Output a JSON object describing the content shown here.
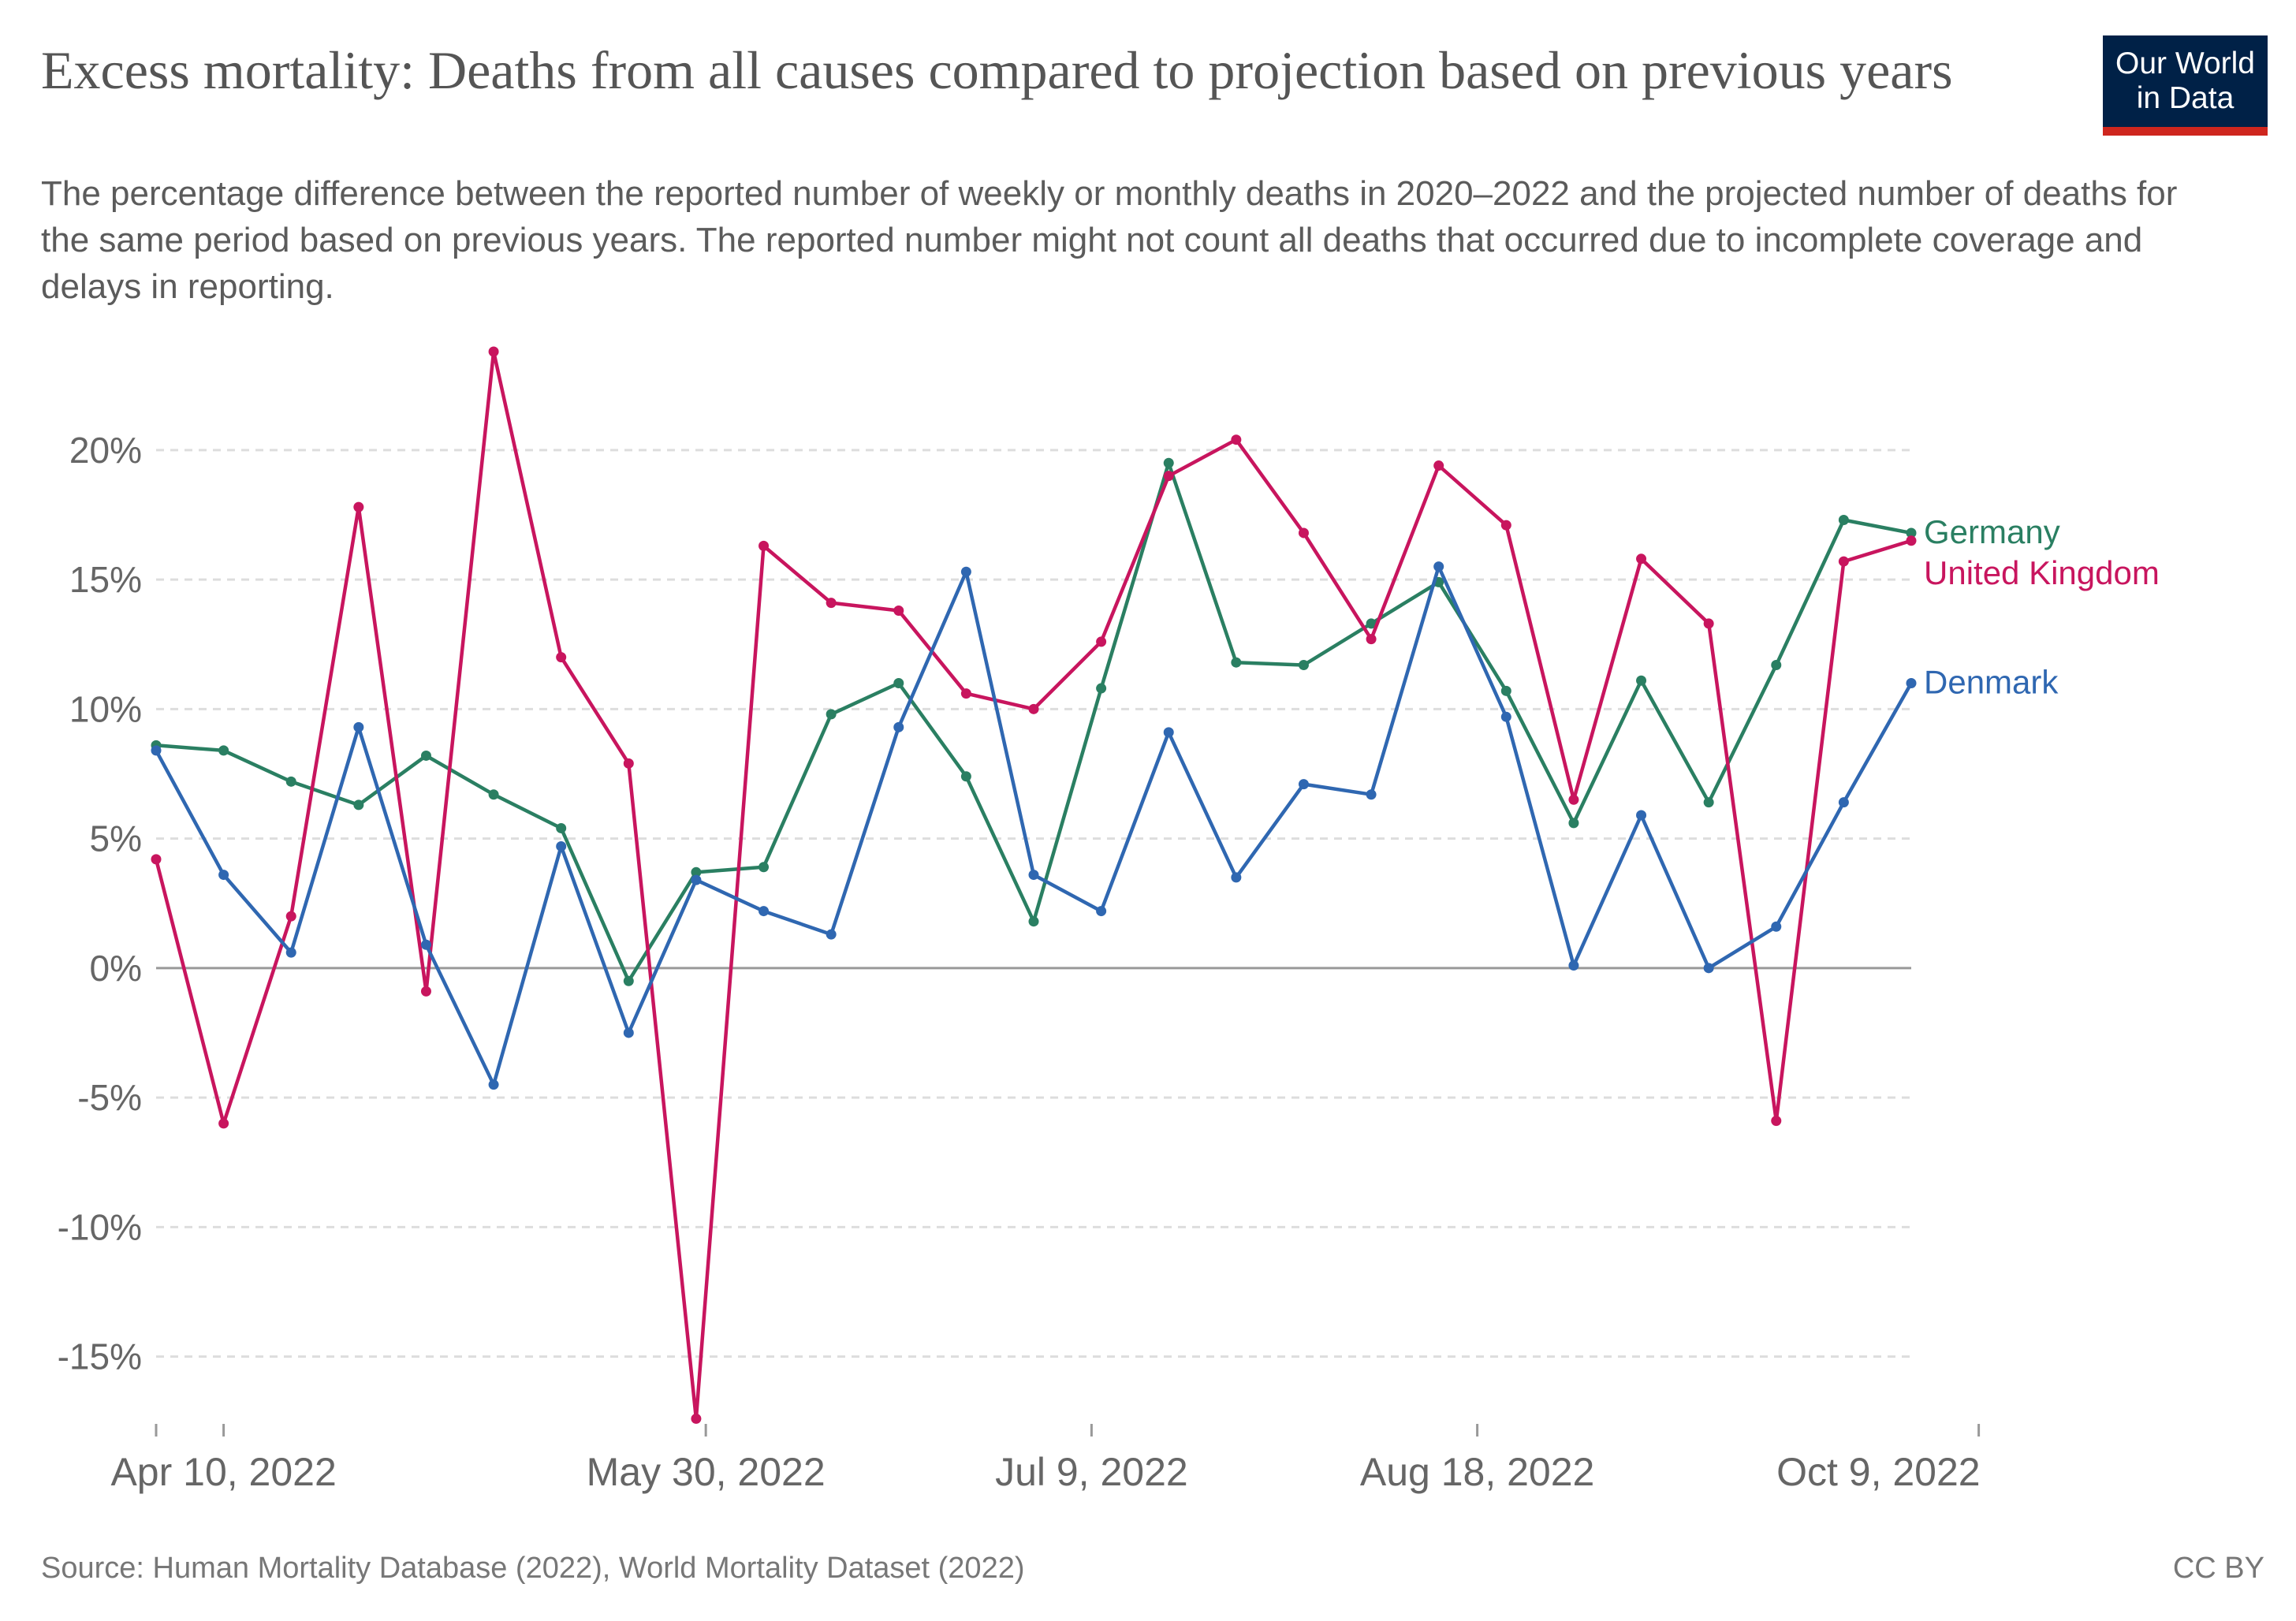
{
  "header": {
    "title": "Excess mortality: Deaths from all causes compared to projection based on previous years",
    "subtitle": "The percentage difference between the reported number of weekly or monthly deaths in 2020–2022 and the projected number of deaths for the same period based on previous years. The reported number might not count all deaths that occurred due to incomplete coverage and delays in reporting."
  },
  "logo": {
    "line1": "Our World",
    "line2": "in Data",
    "bg_color": "#002147",
    "accent_color": "#ce261e"
  },
  "footer": {
    "source": "Source: Human Mortality Database (2022), World Mortality Dataset (2022)",
    "license": "CC BY"
  },
  "chart_data": {
    "type": "line",
    "x_start": "2022-04-03",
    "x_step_days": 7,
    "x_ticks": [
      {
        "date": "2022-04-10",
        "label": "Apr 10, 2022"
      },
      {
        "date": "2022-05-30",
        "label": "May 30, 2022"
      },
      {
        "date": "2022-07-09",
        "label": "Jul 9, 2022"
      },
      {
        "date": "2022-08-18",
        "label": "Aug 18, 2022"
      },
      {
        "date": "2022-10-09",
        "label": "Oct 9, 2022"
      }
    ],
    "y_ticks": [
      {
        "value": 20,
        "label": "20%"
      },
      {
        "value": 15,
        "label": "15%"
      },
      {
        "value": 10,
        "label": "10%"
      },
      {
        "value": 5,
        "label": "5%"
      },
      {
        "value": 0,
        "label": "0%"
      },
      {
        "value": -5,
        "label": "-5%"
      },
      {
        "value": -10,
        "label": "-10%"
      },
      {
        "value": -15,
        "label": "-15%"
      }
    ],
    "ylim": [
      -17.6,
      23.8
    ],
    "grid": true,
    "legend": "right-end labels",
    "series": [
      {
        "name": "Germany",
        "color": "#2a7f62",
        "values": [
          8.6,
          8.4,
          7.2,
          6.3,
          8.2,
          6.7,
          5.4,
          -0.5,
          3.7,
          3.9,
          9.8,
          11.0,
          7.4,
          1.8,
          10.8,
          19.5,
          11.8,
          11.7,
          13.3,
          14.9,
          10.7,
          5.6,
          11.1,
          6.4,
          11.7,
          17.3,
          16.8
        ]
      },
      {
        "name": "United Kingdom",
        "color": "#c8155e",
        "values": [
          4.2,
          -6.0,
          2.0,
          17.8,
          -0.9,
          23.8,
          12.0,
          7.9,
          -17.4,
          16.3,
          14.1,
          13.8,
          10.6,
          10.0,
          12.6,
          19.0,
          20.4,
          16.8,
          12.7,
          19.4,
          17.1,
          6.5,
          15.8,
          13.3,
          -5.9,
          15.7,
          16.5
        ]
      },
      {
        "name": "Denmark",
        "color": "#2f67b1",
        "values": [
          8.4,
          3.6,
          0.6,
          9.3,
          0.9,
          -4.5,
          4.7,
          -2.5,
          3.4,
          2.2,
          1.3,
          9.3,
          15.3,
          3.6,
          2.2,
          9.1,
          3.5,
          7.1,
          6.7,
          15.5,
          9.7,
          0.1,
          5.9,
          0.0,
          1.6,
          6.4,
          11.0
        ]
      }
    ]
  }
}
